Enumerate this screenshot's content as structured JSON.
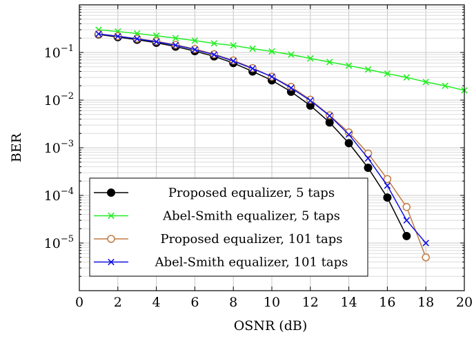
{
  "chart_data": {
    "type": "line",
    "title": "",
    "xlabel": "OSNR (dB)",
    "ylabel": "BER",
    "xlim": [
      0,
      20
    ],
    "ylim": [
      1e-06,
      1
    ],
    "yscale": "log",
    "grid": true,
    "legend_position": "bottom-left",
    "x_ticks": [
      0,
      2,
      4,
      6,
      8,
      10,
      12,
      14,
      16,
      18,
      20
    ],
    "x_tick_labels": [
      "0",
      "2",
      "4",
      "6",
      "8",
      "10",
      "12",
      "14",
      "16",
      "18",
      "20"
    ],
    "y_ticks": [
      1e-05,
      0.0001,
      0.001,
      0.01,
      0.1
    ],
    "y_tick_labels": [
      {
        "base": "10",
        "exp": "−5"
      },
      {
        "base": "10",
        "exp": "−4"
      },
      {
        "base": "10",
        "exp": "−3"
      },
      {
        "base": "10",
        "exp": "−2"
      },
      {
        "base": "10",
        "exp": "−1"
      }
    ],
    "series": [
      {
        "name": "Proposed equalizer, 5 taps",
        "color": "#000000",
        "marker": "filled-circle",
        "x": [
          1,
          2,
          3,
          4,
          5,
          6,
          7,
          8,
          9,
          10,
          11,
          12,
          13,
          14,
          15,
          16,
          17
        ],
        "y": [
          0.24,
          0.21,
          0.185,
          0.16,
          0.133,
          0.107,
          0.083,
          0.06,
          0.04,
          0.026,
          0.015,
          0.0077,
          0.0034,
          0.00125,
          0.00038,
          9e-05,
          1.4e-05
        ]
      },
      {
        "name": "Abel-Smith equalizer, 5 taps",
        "color": "#22ee22",
        "marker": "cross",
        "x": [
          1,
          2,
          3,
          4,
          5,
          6,
          7,
          8,
          9,
          10,
          11,
          12,
          13,
          14,
          15,
          16,
          17,
          18,
          19,
          20
        ],
        "y": [
          0.3,
          0.275,
          0.25,
          0.225,
          0.2,
          0.178,
          0.155,
          0.14,
          0.12,
          0.105,
          0.09,
          0.075,
          0.063,
          0.053,
          0.044,
          0.036,
          0.03,
          0.024,
          0.02,
          0.016
        ]
      },
      {
        "name": "Proposed equalizer, 101 taps",
        "color": "#c07a40",
        "marker": "open-circle",
        "x": [
          1,
          2,
          3,
          4,
          5,
          6,
          7,
          8,
          9,
          10,
          11,
          12,
          13,
          14,
          15,
          16,
          17,
          18
        ],
        "y": [
          0.245,
          0.22,
          0.195,
          0.172,
          0.145,
          0.118,
          0.092,
          0.068,
          0.047,
          0.031,
          0.019,
          0.0102,
          0.0048,
          0.0021,
          0.00076,
          0.00022,
          5.7e-05,
          5e-06
        ]
      },
      {
        "name": "Abel-Smith equalizer, 101 taps",
        "color": "#1010e0",
        "marker": "cross",
        "x": [
          1,
          2,
          3,
          4,
          5,
          6,
          7,
          8,
          9,
          10,
          11,
          12,
          13,
          14,
          15,
          16,
          17,
          18
        ],
        "y": [
          0.245,
          0.218,
          0.193,
          0.168,
          0.142,
          0.115,
          0.09,
          0.066,
          0.046,
          0.031,
          0.018,
          0.0098,
          0.0047,
          0.0019,
          0.0006,
          0.00016,
          3e-05,
          1e-05
        ]
      }
    ]
  }
}
